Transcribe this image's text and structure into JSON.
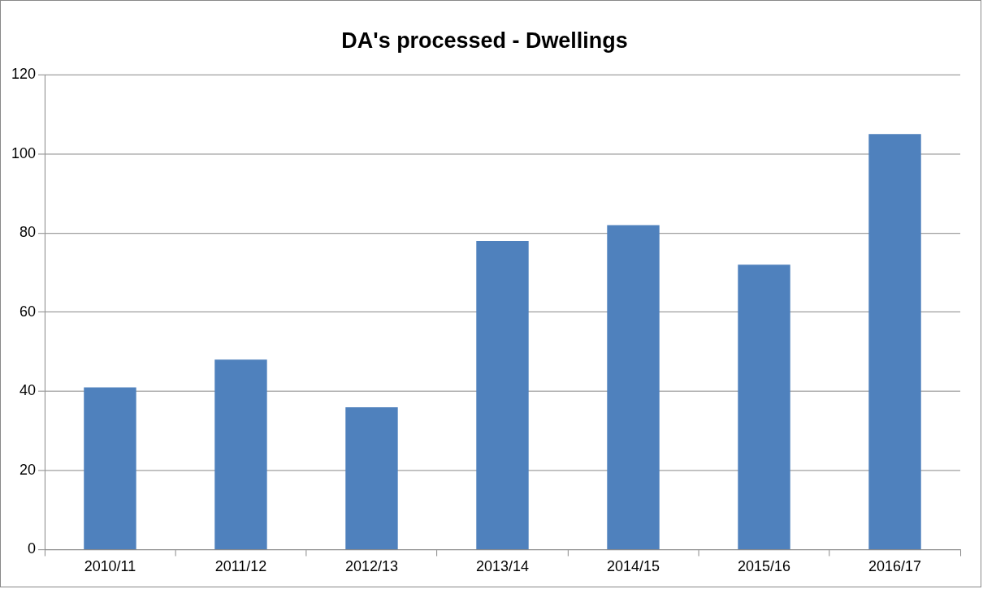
{
  "chart_data": {
    "type": "bar",
    "title": "DA's processed - Dwellings",
    "categories": [
      "2010/11",
      "2011/12",
      "2012/13",
      "2013/14",
      "2014/15",
      "2015/16",
      "2016/17"
    ],
    "values": [
      41,
      48,
      36,
      78,
      82,
      72,
      105
    ],
    "color": "#4f81bd",
    "ylim": [
      0,
      120
    ],
    "yticks": [
      0,
      20,
      40,
      60,
      80,
      100,
      120
    ],
    "grid": "y",
    "legend": false
  }
}
